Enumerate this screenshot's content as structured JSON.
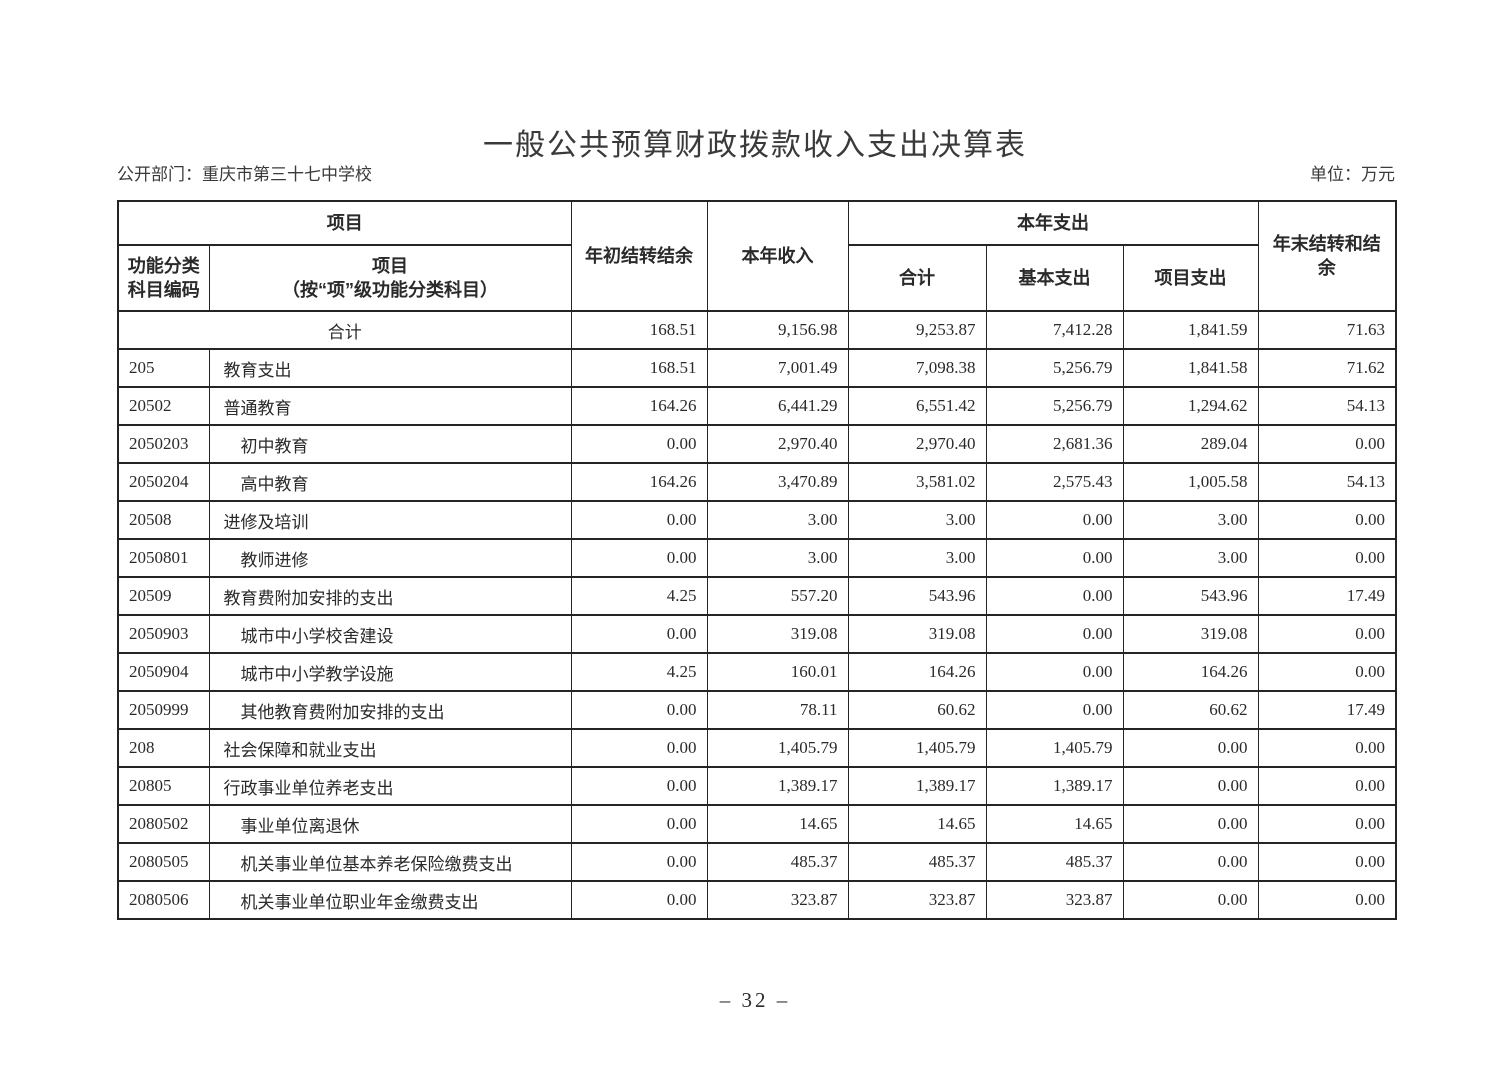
{
  "page": {
    "title": "一般公共预算财政拨款收入支出决算表",
    "department_label": "公开部门：重庆市第三十七中学校",
    "unit_label": "单位：万元",
    "page_number": "– 32 –"
  },
  "table": {
    "header": {
      "project_group": "项目",
      "code_column": "功能分类\n科目编码",
      "name_column": "项目\n（按“项”级功能分类科目）",
      "begin_balance": "年初结转结余",
      "income": "本年收入",
      "expenditure_group": "本年支出",
      "total_column": "合计",
      "basic_column": "基本支出",
      "project_column": "项目支出",
      "end_balance": "年末结转和结余"
    },
    "rows": [
      {
        "code": "",
        "name": "合计",
        "merged": true,
        "indent": 0,
        "values": [
          "168.51",
          "9,156.98",
          "9,253.87",
          "7,412.28",
          "1,841.59",
          "71.63"
        ]
      },
      {
        "code": "205",
        "name": "教育支出",
        "merged": false,
        "indent": 0,
        "values": [
          "168.51",
          "7,001.49",
          "7,098.38",
          "5,256.79",
          "1,841.58",
          "71.62"
        ]
      },
      {
        "code": "20502",
        "name": "普通教育",
        "merged": false,
        "indent": 0,
        "values": [
          "164.26",
          "6,441.29",
          "6,551.42",
          "5,256.79",
          "1,294.62",
          "54.13"
        ]
      },
      {
        "code": "2050203",
        "name": "初中教育",
        "merged": false,
        "indent": 1,
        "values": [
          "0.00",
          "2,970.40",
          "2,970.40",
          "2,681.36",
          "289.04",
          "0.00"
        ]
      },
      {
        "code": "2050204",
        "name": "高中教育",
        "merged": false,
        "indent": 1,
        "values": [
          "164.26",
          "3,470.89",
          "3,581.02",
          "2,575.43",
          "1,005.58",
          "54.13"
        ]
      },
      {
        "code": "20508",
        "name": "进修及培训",
        "merged": false,
        "indent": 0,
        "values": [
          "0.00",
          "3.00",
          "3.00",
          "0.00",
          "3.00",
          "0.00"
        ]
      },
      {
        "code": "2050801",
        "name": "教师进修",
        "merged": false,
        "indent": 1,
        "values": [
          "0.00",
          "3.00",
          "3.00",
          "0.00",
          "3.00",
          "0.00"
        ]
      },
      {
        "code": "20509",
        "name": "教育费附加安排的支出",
        "merged": false,
        "indent": 0,
        "values": [
          "4.25",
          "557.20",
          "543.96",
          "0.00",
          "543.96",
          "17.49"
        ]
      },
      {
        "code": "2050903",
        "name": "城市中小学校舍建设",
        "merged": false,
        "indent": 1,
        "values": [
          "0.00",
          "319.08",
          "319.08",
          "0.00",
          "319.08",
          "0.00"
        ]
      },
      {
        "code": "2050904",
        "name": "城市中小学教学设施",
        "merged": false,
        "indent": 1,
        "values": [
          "4.25",
          "160.01",
          "164.26",
          "0.00",
          "164.26",
          "0.00"
        ]
      },
      {
        "code": "2050999",
        "name": "其他教育费附加安排的支出",
        "merged": false,
        "indent": 1,
        "values": [
          "0.00",
          "78.11",
          "60.62",
          "0.00",
          "60.62",
          "17.49"
        ]
      },
      {
        "code": "208",
        "name": "社会保障和就业支出",
        "merged": false,
        "indent": 0,
        "values": [
          "0.00",
          "1,405.79",
          "1,405.79",
          "1,405.79",
          "0.00",
          "0.00"
        ]
      },
      {
        "code": "20805",
        "name": "行政事业单位养老支出",
        "merged": false,
        "indent": 0,
        "values": [
          "0.00",
          "1,389.17",
          "1,389.17",
          "1,389.17",
          "0.00",
          "0.00"
        ]
      },
      {
        "code": "2080502",
        "name": "事业单位离退休",
        "merged": false,
        "indent": 1,
        "values": [
          "0.00",
          "14.65",
          "14.65",
          "14.65",
          "0.00",
          "0.00"
        ]
      },
      {
        "code": "2080505",
        "name": "机关事业单位基本养老保险缴费支出",
        "merged": false,
        "indent": 1,
        "values": [
          "0.00",
          "485.37",
          "485.37",
          "485.37",
          "0.00",
          "0.00"
        ]
      },
      {
        "code": "2080506",
        "name": "机关事业单位职业年金缴费支出",
        "merged": false,
        "indent": 1,
        "values": [
          "0.00",
          "323.87",
          "323.87",
          "323.87",
          "0.00",
          "0.00"
        ]
      }
    ]
  }
}
